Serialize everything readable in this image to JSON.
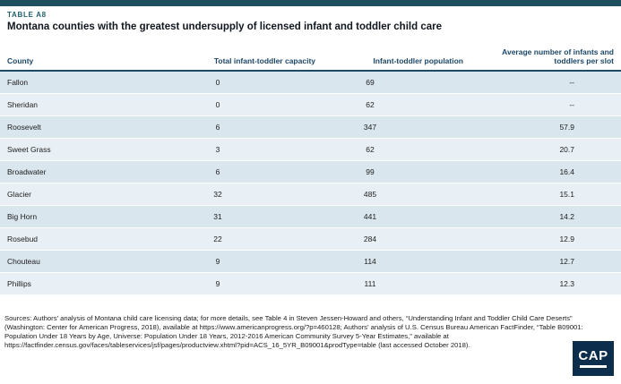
{
  "chart_data": {
    "type": "table",
    "label": "TABLE A8",
    "title": "Montana counties with the greatest undersupply of licensed infant and toddler child care",
    "columns": [
      "County",
      "Total infant-toddler capacity",
      "Infant-toddler population",
      "Average number of infants and toddlers per slot"
    ],
    "rows": [
      [
        "Fallon",
        "0",
        "69",
        "--"
      ],
      [
        "Sheridan",
        "0",
        "62",
        "--"
      ],
      [
        "Roosevelt",
        "6",
        "347",
        "57.9"
      ],
      [
        "Sweet Grass",
        "3",
        "62",
        "20.7"
      ],
      [
        "Broadwater",
        "6",
        "99",
        "16.4"
      ],
      [
        "Glacier",
        "32",
        "485",
        "15.1"
      ],
      [
        "Big Horn",
        "31",
        "441",
        "14.2"
      ],
      [
        "Rosebud",
        "22",
        "284",
        "12.9"
      ],
      [
        "Chouteau",
        "9",
        "114",
        "12.7"
      ],
      [
        "Phillips",
        "9",
        "111",
        "12.3"
      ]
    ]
  },
  "sources": "Sources: Authors’ analysis of Montana child care licensing data; for more details, see Table 4 in Steven Jessen-Howard and others, “Understanding Infant and Toddler Child Care Deserts” (Washington: Center for American Progress, 2018), available at https://www.americanprogress.org/?p=460128; Authors’ analysis of U.S. Census Bureau American FactFinder, “Table B09001: Population Under 18 Years by Age, Universe: Population Under 18 Years, 2012-2016 American Community Survey 5-Year Estimates,” available at https://factfinder.census.gov/faces/tableservices/jsf/pages/productview.xhtml?pid=ACS_16_5YR_B09001&prodType=table (last accessed October 2018).",
  "logo": {
    "text": "CAP"
  },
  "colors": {
    "accent_bar": "#1f4e5e",
    "label_color": "#20606f",
    "header_text": "#1c4767",
    "header_rule": "#1d4b66",
    "row_odd": "#d9e6ee",
    "row_even": "#e9f0f5",
    "logo_bg": "#0d2d4d"
  }
}
